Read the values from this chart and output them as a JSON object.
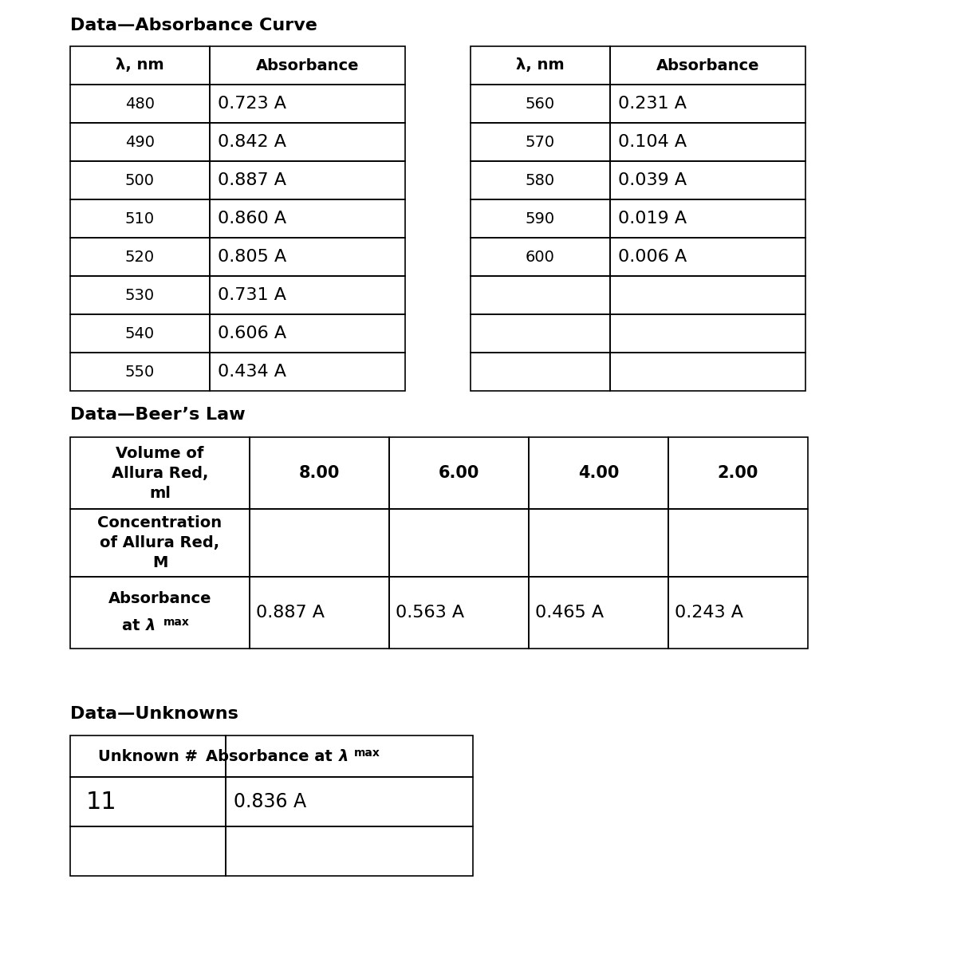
{
  "title1": "Data—Absorbance Curve",
  "title2": "Data—Beer’s Law",
  "title3": "Data—Unknowns",
  "abs_curve_left": {
    "headers": [
      "λ, nm",
      "Absorbance"
    ],
    "rows": [
      [
        "480",
        "0.723 A"
      ],
      [
        "490",
        "0.842 A"
      ],
      [
        "500",
        "0.887 A"
      ],
      [
        "510",
        "0.860 A"
      ],
      [
        "520",
        "0.805 A"
      ],
      [
        "530",
        "0.731 A"
      ],
      [
        "540",
        "0.606 A"
      ],
      [
        "550",
        "0.434 A"
      ]
    ]
  },
  "abs_curve_right": {
    "headers": [
      "λ, nm",
      "Absorbance"
    ],
    "rows": [
      [
        "560",
        "0.231 A"
      ],
      [
        "570",
        "0.104 A"
      ],
      [
        "580",
        "0.039 A"
      ],
      [
        "590",
        "0.019 A"
      ],
      [
        "600",
        "0.006 A"
      ],
      [
        "",
        ""
      ],
      [
        "",
        ""
      ],
      [
        "",
        ""
      ]
    ]
  },
  "beers_law": {
    "row0": [
      "Volume of\nAllura Red,\nml",
      "8.00",
      "6.00",
      "4.00",
      "2.00"
    ],
    "row1": [
      "Concentration\nof Allura Red,\nM",
      "",
      "",
      "",
      ""
    ],
    "row2_label_line1": "Absorbance",
    "row2_label_line2": "at λ",
    "row2_label_line2b": "max",
    "row2_data": [
      "0.887 A",
      "0.563 A",
      "0.465 A",
      "0.243 A"
    ]
  },
  "unknowns": {
    "header0": "Unknown #",
    "header1_part1": "Absorbance at λ",
    "header1_part2": "max",
    "rows": [
      [
        "11",
        "0.836 A"
      ],
      [
        "",
        ""
      ],
      [
        "",
        ""
      ]
    ]
  },
  "background": "#ffffff",
  "text_color": "#000000",
  "line_color": "#000000"
}
